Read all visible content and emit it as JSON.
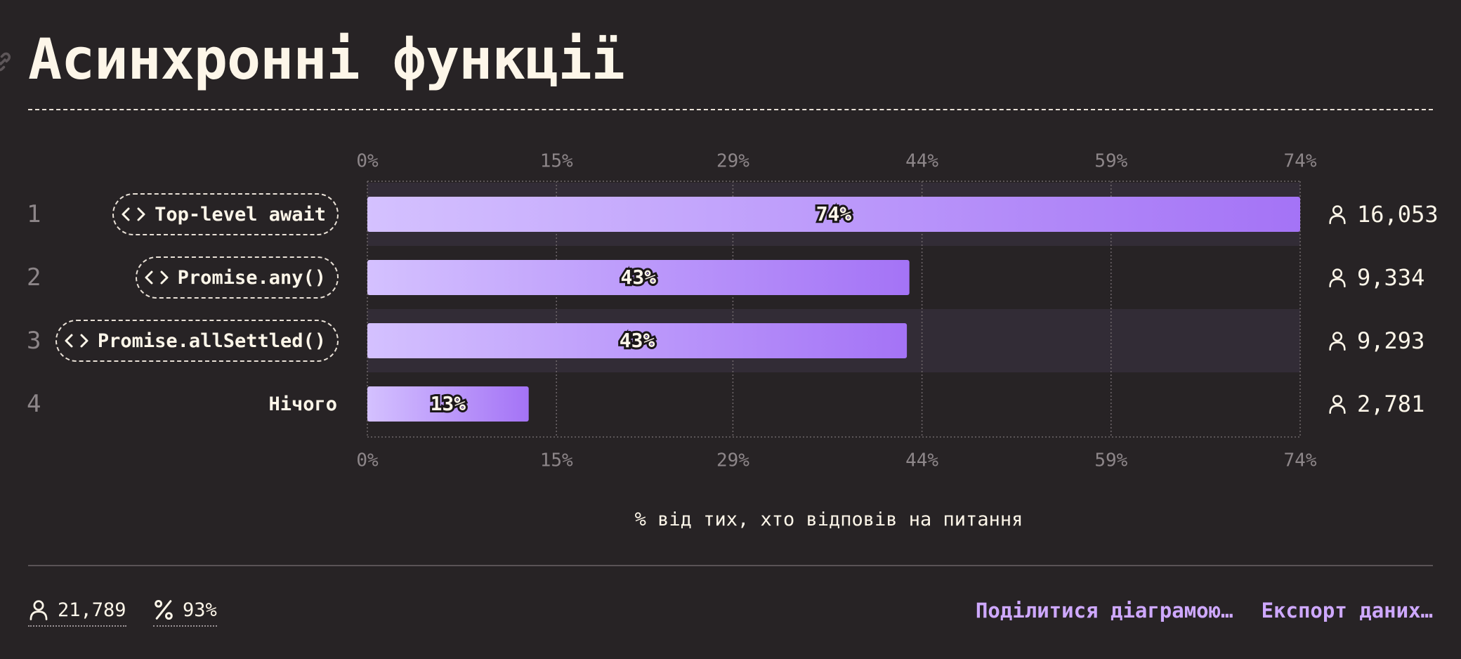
{
  "title": "Асинхронні функції",
  "icons": {
    "anchor": "link-icon",
    "option": "code-icon",
    "respondents": "person-icon",
    "percent": "percent-icon"
  },
  "colors": {
    "background": "#272325",
    "bar_start": "#d4c1ff",
    "bar_end": "#a473f6",
    "accent": "#cea8ff"
  },
  "chart_data": {
    "type": "bar",
    "orientation": "horizontal",
    "xlim": [
      0,
      74
    ],
    "ticks": [
      0,
      15,
      29,
      44,
      59,
      74
    ],
    "tick_labels": [
      "0%",
      "15%",
      "29%",
      "44%",
      "59%",
      "74%"
    ],
    "xlabel": "% від тих, хто відповів на питання",
    "grid": true,
    "rows": [
      {
        "rank": "1",
        "label": "Top-level await",
        "is_code": true,
        "value": 74,
        "value_label": "74%",
        "count": "16,053"
      },
      {
        "rank": "2",
        "label": "Promise.any()",
        "is_code": true,
        "value": 43,
        "value_label": "43%",
        "count": "9,334"
      },
      {
        "rank": "3",
        "label": "Promise.allSettled()",
        "is_code": true,
        "value": 42.8,
        "value_label": "43%",
        "count": "9,293"
      },
      {
        "rank": "4",
        "label": "Нічого",
        "is_code": false,
        "value": 12.8,
        "value_label": "13%",
        "count": "2,781"
      }
    ]
  },
  "footer": {
    "respondents": "21,789",
    "completion": "93%",
    "share_label": "Поділитися діаграмою…",
    "export_label": "Експорт даних…"
  }
}
